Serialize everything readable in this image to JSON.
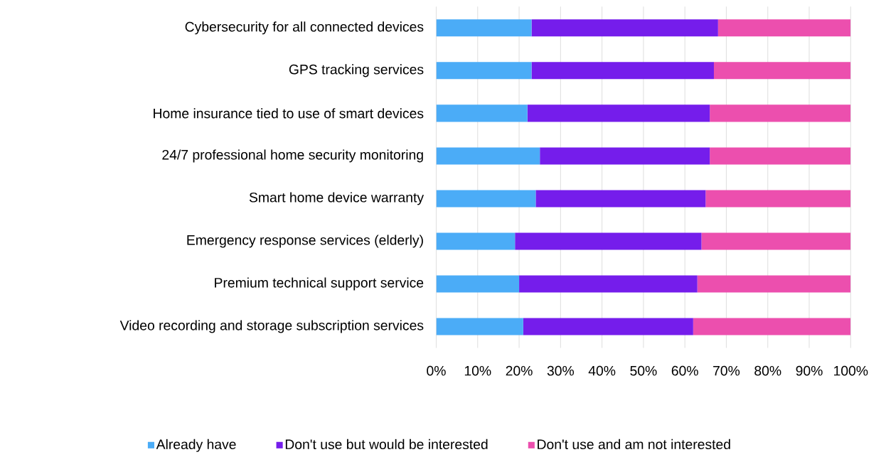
{
  "chart_data": {
    "type": "bar",
    "orientation": "horizontal",
    "stacked": true,
    "categories": [
      "Cybersecurity for all connected devices",
      "GPS tracking services",
      "Home insurance tied to use of smart devices",
      "24/7 professional home security monitoring",
      "Smart home device warranty",
      "Emergency response services (elderly)",
      "Premium technical support service",
      "Video recording and storage subscription services"
    ],
    "series": [
      {
        "name": "Already have",
        "color": "#4bacf7",
        "values": [
          23,
          23,
          22,
          25,
          24,
          19,
          20,
          21
        ]
      },
      {
        "name": "Don't use but would be interested",
        "color": "#751deb",
        "values": [
          45,
          44,
          44,
          41,
          41,
          45,
          43,
          41
        ]
      },
      {
        "name": "Don't use and am not interested",
        "color": "#ec4fae",
        "values": [
          32,
          33,
          34,
          34,
          35,
          36,
          37,
          38
        ]
      }
    ],
    "xlim": [
      0,
      100
    ],
    "xticks": [
      {
        "value": 0,
        "label": "0%"
      },
      {
        "value": 10,
        "label": "10%"
      },
      {
        "value": 20,
        "label": "20%"
      },
      {
        "value": 30,
        "label": "30%"
      },
      {
        "value": 40,
        "label": "40%"
      },
      {
        "value": 50,
        "label": "50%"
      },
      {
        "value": 60,
        "label": "60%"
      },
      {
        "value": 70,
        "label": "70%"
      },
      {
        "value": 80,
        "label": "80%"
      },
      {
        "value": 90,
        "label": "90%"
      },
      {
        "value": 100,
        "label": "100%"
      }
    ],
    "grid": "x",
    "legend": "bottom"
  }
}
